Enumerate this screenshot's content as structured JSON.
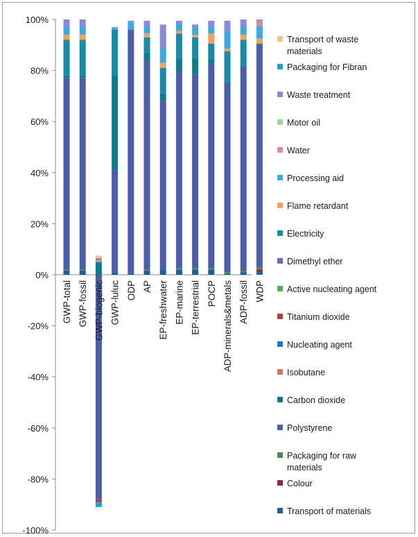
{
  "chart_data": {
    "type": "bar",
    "stacked": true,
    "title": "",
    "xlabel": "",
    "ylabel": "",
    "ylim": [
      -1.0,
      1.0
    ],
    "yticks": [
      {
        "value": 1.0,
        "label": "100%"
      },
      {
        "value": 0.8,
        "label": "80%"
      },
      {
        "value": 0.6,
        "label": "60%"
      },
      {
        "value": 0.4,
        "label": "40%"
      },
      {
        "value": 0.2,
        "label": "20%"
      },
      {
        "value": 0.0,
        "label": "0%"
      },
      {
        "value": -0.2,
        "label": "-20%"
      },
      {
        "value": -0.4,
        "label": "-40%"
      },
      {
        "value": -0.6,
        "label": "-60%"
      },
      {
        "value": -0.8,
        "label": "-80%"
      },
      {
        "value": -1.0,
        "label": "-100%"
      }
    ],
    "grid": false,
    "legend_position": "right",
    "categories": [
      "GWP-total",
      "GWP-fossil",
      "GWP-biogenic",
      "GWP-luluc",
      "ODP",
      "AP",
      "EP-freshwater",
      "EP-marine",
      "EP-terrestrial",
      "POCP",
      "ADP-minerals&metals",
      "ADP-fossil",
      "WDP"
    ],
    "series": [
      {
        "name": "Transport of materials",
        "color": "#1f5d96",
        "values": [
          0.015,
          0.015,
          0.0,
          0.01,
          0.005,
          0.015,
          0.02,
          0.02,
          0.02,
          0.02,
          0.005,
          0.01,
          0.01
        ]
      },
      {
        "name": "Colour",
        "color": "#8b2a3a",
        "values": [
          0.0,
          0.0,
          0.0,
          0.0,
          0.0,
          0.0,
          0.0,
          0.0,
          0.0,
          0.0,
          0.0,
          0.0,
          0.01
        ]
      },
      {
        "name": "Packaging for raw materials",
        "color": "#4a8a5a",
        "values": [
          0.005,
          0.005,
          0.0,
          0.0,
          0.0,
          0.005,
          0.0,
          0.005,
          0.005,
          0.005,
          0.005,
          0.005,
          0.01
        ]
      },
      {
        "name": "Polystyrene",
        "color": "#4c5ea8",
        "values": [
          0.75,
          0.75,
          -0.88,
          0.4,
          0.955,
          0.82,
          0.66,
          0.77,
          0.76,
          0.8,
          0.74,
          0.8,
          0.87
        ]
      },
      {
        "name": "Carbon dioxide",
        "color": "#137a8c",
        "values": [
          0.01,
          0.01,
          0.05,
          0.37,
          0.0,
          0.03,
          0.03,
          0.05,
          0.065,
          0.02,
          0.005,
          0.005,
          0.005
        ]
      },
      {
        "name": "Isobutane",
        "color": "#d47a5a",
        "values": [
          0.0,
          0.0,
          0.0,
          0.0,
          0.0,
          0.0,
          0.0,
          0.0,
          0.0,
          0.0,
          0.0,
          0.0,
          0.0
        ]
      },
      {
        "name": "Nucleating agent",
        "color": "#1f77c4",
        "values": [
          0.0,
          0.0,
          0.0,
          0.0,
          0.0,
          0.0,
          0.0,
          0.0,
          0.0,
          0.0,
          0.0,
          0.0,
          0.0
        ]
      },
      {
        "name": "Titanium dioxide",
        "color": "#b0404a",
        "values": [
          0.0,
          0.0,
          -0.01,
          0.0,
          0.0,
          0.0,
          0.0,
          0.0,
          0.0,
          0.0,
          0.0,
          0.0,
          0.0
        ]
      },
      {
        "name": "Active nucleating agent",
        "color": "#5aa860",
        "values": [
          0.0,
          0.0,
          0.0,
          0.0,
          0.0,
          0.0,
          0.0,
          0.0,
          0.0,
          0.0,
          0.0,
          0.0,
          0.0
        ]
      },
      {
        "name": "Dimethyl ether",
        "color": "#6a6ab8",
        "values": [
          0.0,
          0.0,
          0.0,
          0.0,
          0.0,
          0.0,
          0.0,
          0.0,
          0.0,
          0.0,
          0.0,
          0.0,
          0.0
        ]
      },
      {
        "name": "Electricity",
        "color": "#1a8aa8",
        "values": [
          0.14,
          0.14,
          0.0,
          0.18,
          0.0,
          0.06,
          0.1,
          0.1,
          0.08,
          0.06,
          0.12,
          0.1,
          0.0
        ]
      },
      {
        "name": "Flame retardant",
        "color": "#f0a060",
        "values": [
          0.02,
          0.02,
          0.005,
          0.0,
          0.0,
          0.015,
          0.02,
          0.01,
          0.01,
          0.04,
          0.01,
          0.02,
          0.02
        ]
      },
      {
        "name": "Processing aid",
        "color": "#3fa8e0",
        "values": [
          0.03,
          0.03,
          0.0,
          0.005,
          0.03,
          0.03,
          0.06,
          0.03,
          0.03,
          0.03,
          0.07,
          0.03,
          0.05
        ]
      },
      {
        "name": "Water",
        "color": "#d88a9a",
        "values": [
          0.0,
          0.0,
          0.0,
          0.0,
          0.0,
          0.0,
          0.0,
          0.0,
          0.0,
          0.0,
          0.0,
          0.0,
          0.02
        ]
      },
      {
        "name": "Motor oil",
        "color": "#9fd09f",
        "values": [
          0.0,
          0.0,
          0.0,
          0.0,
          0.0,
          0.0,
          0.0,
          0.0,
          0.0,
          0.0,
          0.0,
          0.0,
          0.0
        ]
      },
      {
        "name": "Waste treatment",
        "color": "#8a8ad8",
        "values": [
          0.03,
          0.03,
          0.01,
          0.005,
          0.005,
          0.02,
          0.09,
          0.01,
          0.01,
          0.02,
          0.04,
          0.03,
          0.005
        ]
      },
      {
        "name": "Packaging for Fibran",
        "color": "#2aa0c8",
        "values": [
          0.0,
          0.0,
          -0.02,
          0.0,
          0.0,
          0.0,
          0.0,
          0.0,
          0.0,
          0.0,
          0.0,
          0.0,
          0.0
        ]
      },
      {
        "name": "Transport of waste materials",
        "color": "#f5c08a",
        "values": [
          0.0,
          0.0,
          0.01,
          0.0,
          0.0,
          0.0,
          0.0,
          0.0,
          0.0,
          0.0,
          0.0,
          0.0,
          0.0
        ]
      }
    ]
  }
}
